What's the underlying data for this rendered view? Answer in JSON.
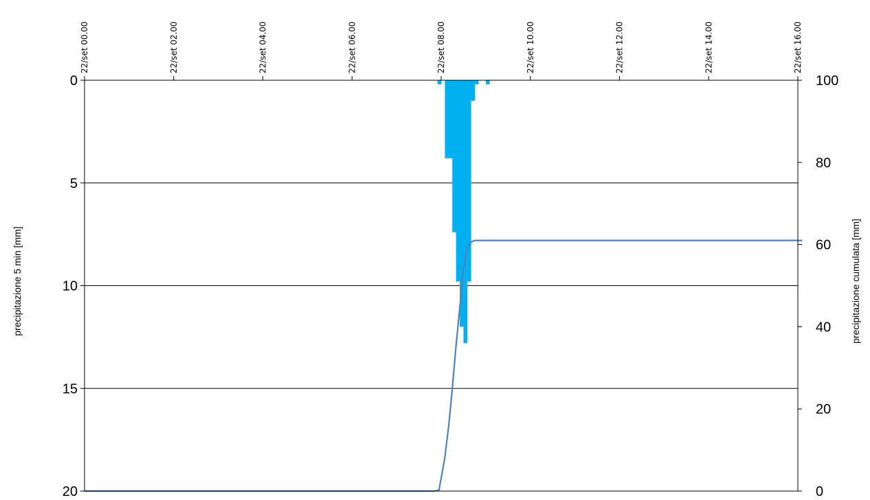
{
  "chart_data": {
    "type": "bar",
    "title": "",
    "x_axis": {
      "position": "top",
      "tick_labels": [
        "22/set 00.00",
        "22/set 02.00",
        "22/set 04.00",
        "22/set 06.00",
        "22/set 08.00",
        "22/set 10.00",
        "22/set 12.00",
        "22/set 14.00",
        "22/set 16.00"
      ],
      "range_hours": [
        0,
        16
      ]
    },
    "y_left": {
      "label": "precipitazione 5 min [mm]",
      "range": [
        0,
        20
      ],
      "inverted": true,
      "ticks": [
        0,
        5,
        10,
        15,
        20
      ]
    },
    "y_right": {
      "label": "precipitazione cumulata [mm]",
      "range": [
        0,
        100
      ],
      "ticks": [
        0,
        20,
        40,
        60,
        80,
        100
      ]
    },
    "grid": "horizontal",
    "series": [
      {
        "type": "bar",
        "axis": "left",
        "color": "#00b0f0",
        "interval_hours": 0.0833,
        "points": [
          {
            "t": 7.917,
            "v": 0.2
          },
          {
            "t": 8.0,
            "v": 0.0
          },
          {
            "t": 8.083,
            "v": 3.8
          },
          {
            "t": 8.167,
            "v": 3.8
          },
          {
            "t": 8.25,
            "v": 7.4
          },
          {
            "t": 8.333,
            "v": 9.8
          },
          {
            "t": 8.417,
            "v": 12.0
          },
          {
            "t": 8.5,
            "v": 12.8
          },
          {
            "t": 8.583,
            "v": 9.8
          },
          {
            "t": 8.667,
            "v": 1.0
          },
          {
            "t": 8.75,
            "v": 0.2
          },
          {
            "t": 9.0,
            "v": 0.2
          }
        ]
      },
      {
        "type": "line",
        "axis": "right",
        "color": "#4f81bd",
        "points": [
          {
            "t": 0,
            "v": 0
          },
          {
            "t": 7.83,
            "v": 0
          },
          {
            "t": 7.95,
            "v": 0.2
          },
          {
            "t": 8.08,
            "v": 8
          },
          {
            "t": 8.17,
            "v": 16
          },
          {
            "t": 8.25,
            "v": 25
          },
          {
            "t": 8.33,
            "v": 35
          },
          {
            "t": 8.42,
            "v": 45
          },
          {
            "t": 8.5,
            "v": 54
          },
          {
            "t": 8.58,
            "v": 59
          },
          {
            "t": 8.67,
            "v": 60.6
          },
          {
            "t": 8.75,
            "v": 61
          },
          {
            "t": 16.1,
            "v": 61
          }
        ]
      }
    ]
  }
}
